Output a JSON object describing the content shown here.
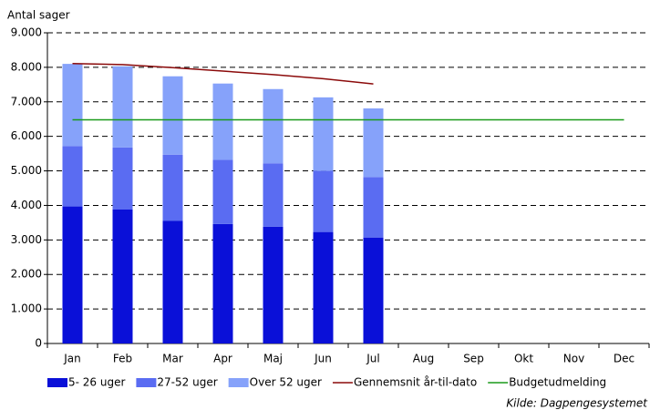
{
  "chart_data": {
    "type": "bar",
    "stacked": true,
    "y_label": "Antal sager",
    "source": "Kilde: Dagpengesystemet",
    "categories": [
      "Jan",
      "Feb",
      "Mar",
      "Apr",
      "Maj",
      "Jun",
      "Jul",
      "Aug",
      "Sep",
      "Okt",
      "Nov",
      "Dec"
    ],
    "series": [
      {
        "name": "5- 26 uger",
        "type": "bar",
        "color": "#0a10d8",
        "values": [
          3970,
          3880,
          3550,
          3460,
          3380,
          3230,
          3070,
          null,
          null,
          null,
          null,
          null
        ]
      },
      {
        "name": "27-52 uger",
        "type": "bar",
        "color": "#5a6cf2",
        "values": [
          1750,
          1800,
          1920,
          1860,
          1840,
          1770,
          1750,
          null,
          null,
          null,
          null,
          null
        ]
      },
      {
        "name": "Over 52 uger",
        "type": "bar",
        "color": "#86a2fa",
        "values": [
          2380,
          2350,
          2270,
          2210,
          2150,
          2130,
          1990,
          null,
          null,
          null,
          null,
          null
        ]
      },
      {
        "name": "Gennemsnit år-til-dato",
        "type": "line",
        "color": "#8b0a0a",
        "values": [
          8110,
          8080,
          7990,
          7890,
          7790,
          7670,
          7520,
          null,
          null,
          null,
          null,
          null
        ]
      },
      {
        "name": "Budgetudmelding",
        "type": "line",
        "color": "#1a9a1a",
        "values": [
          6480,
          6480,
          6480,
          6480,
          6480,
          6480,
          6480,
          6480,
          6480,
          6480,
          6480,
          6480
        ]
      }
    ],
    "ylim": [
      0,
      9000
    ],
    "yticks": [
      0,
      {
        "value": 1000,
        "label": "1.000"
      },
      {
        "value": 2000,
        "label": "2.000"
      },
      {
        "value": 3000,
        "label": "3.000"
      },
      {
        "value": 4000,
        "label": "4.000"
      },
      {
        "value": 5000,
        "label": "5.000"
      },
      {
        "value": 6000,
        "label": "6.000"
      },
      {
        "value": 7000,
        "label": "7.000"
      },
      {
        "value": 8000,
        "label": "8.000"
      },
      {
        "value": 9000,
        "label": "9.000"
      }
    ],
    "grid": true
  }
}
